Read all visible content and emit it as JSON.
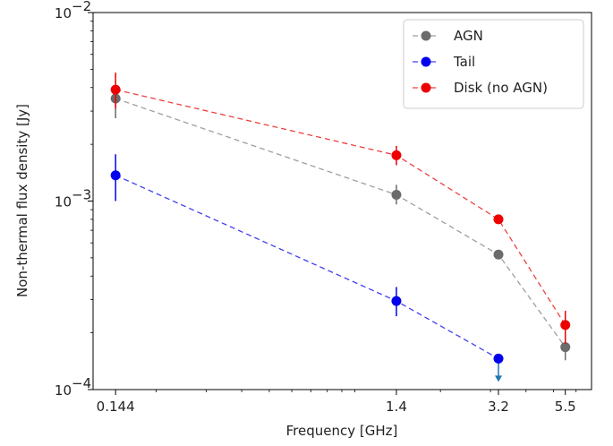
{
  "chart_data": {
    "type": "line",
    "title": "",
    "xlabel": "Frequency [GHz]",
    "ylabel": "Non-thermal flux density [Jy]",
    "xscale": "log",
    "yscale": "log",
    "xlim": [
      0.12,
      6.8
    ],
    "ylim": [
      0.0001,
      0.01
    ],
    "grid": false,
    "legend_position": "top-right",
    "x_ticks": [
      {
        "value": 0.144,
        "label": "0.144"
      },
      {
        "value": 1.4,
        "label": "1.4"
      },
      {
        "value": 3.2,
        "label": "3.2"
      },
      {
        "value": 5.5,
        "label": "5.5"
      }
    ],
    "y_ticks": [
      {
        "value": 0.0001,
        "base": "10",
        "exp": "−4"
      },
      {
        "value": 0.001,
        "base": "10",
        "exp": "−3"
      },
      {
        "value": 0.01,
        "base": "10",
        "exp": "−2"
      }
    ],
    "series": [
      {
        "name": "AGN",
        "color": "#6b6b6b",
        "line_color": "#9e9e9e",
        "points": [
          {
            "x": 0.144,
            "y": 0.0035,
            "err_low": 0.00275,
            "err_high": 0.0041
          },
          {
            "x": 1.4,
            "y": 0.00108,
            "err_low": 0.00096,
            "err_high": 0.00122
          },
          {
            "x": 3.2,
            "y": 0.00052
          },
          {
            "x": 5.5,
            "y": 0.000168,
            "err_low": 0.000143,
            "err_high": 0.000195
          }
        ]
      },
      {
        "name": "Tail",
        "color": "#0000ee",
        "line_color": "#4040ee",
        "points": [
          {
            "x": 0.144,
            "y": 0.00137,
            "err_low": 0.001,
            "err_high": 0.00177
          },
          {
            "x": 1.4,
            "y": 0.000295,
            "err_low": 0.000245,
            "err_high": 0.00035
          },
          {
            "x": 3.2,
            "y": 0.000146,
            "upper_limit": true
          }
        ]
      },
      {
        "name": "Disk (no AGN)",
        "color": "#ee0000",
        "line_color": "#ee4040",
        "points": [
          {
            "x": 0.144,
            "y": 0.0039,
            "err_low": 0.0031,
            "err_high": 0.0048
          },
          {
            "x": 1.4,
            "y": 0.00175,
            "err_low": 0.00155,
            "err_high": 0.00196
          },
          {
            "x": 3.2,
            "y": 0.0008
          },
          {
            "x": 5.5,
            "y": 0.00022,
            "err_low": 0.000175,
            "err_high": 0.000262
          }
        ]
      }
    ],
    "upper_limit_arrow_color": "#1f77b4"
  }
}
